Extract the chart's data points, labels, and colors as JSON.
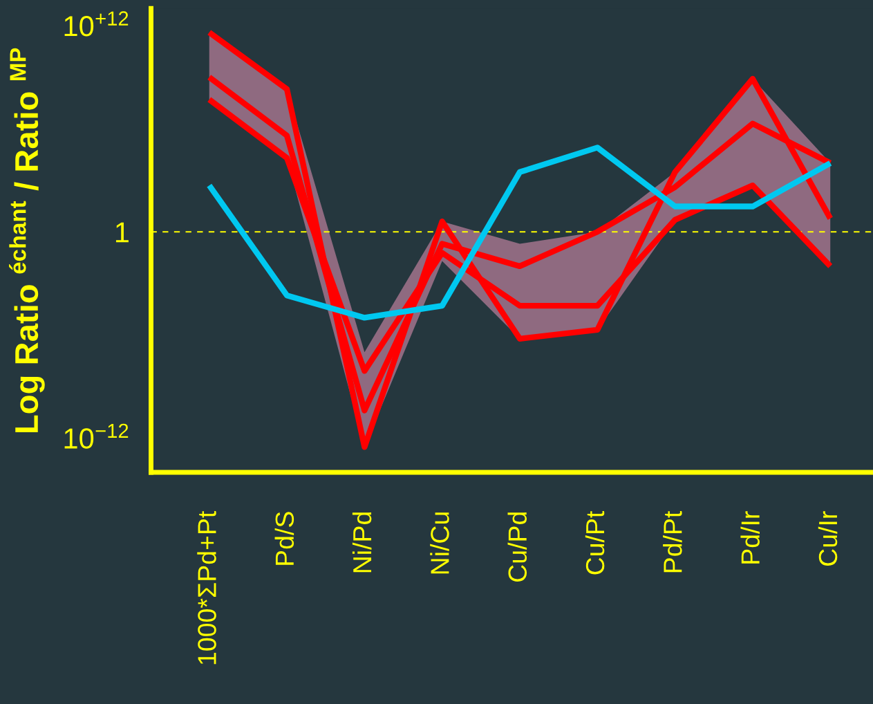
{
  "chart_data": {
    "type": "line",
    "ylabel": "Log Ratio $^{échant}$ / Ratio $^{MP}$",
    "categories": [
      "1000*ΣPd+Pt",
      "Pd/S",
      "Ni/Pd",
      "Ni/Cu",
      "Cu/Pd",
      "Cu/Pt",
      "Pd/Pt",
      "Pd/Ir",
      "Cu/Ir"
    ],
    "log": "y",
    "ylim": [
      1e-14,
      10000000000000.0
    ],
    "yticks": [
      {
        "value": 1000000000000.0,
        "label": "10$^{+12}$"
      },
      1,
      {
        "value": 1e-12,
        "label": "10$^{−12}$"
      }
    ],
    "series": [
      {
        "color": "#ff0000",
        "values": [
          400000000000.0,
          200000000.0,
          3e-13,
          4,
          6e-07,
          2e-06,
          3000.0,
          800000000.0,
          6
        ]
      },
      {
        "color": "#ff0000",
        "values": [
          1000000000.0,
          400000.0,
          4e-11,
          0.2,
          0.01,
          1,
          400,
          2000000.0,
          10000.0
        ],
        "lower": [
          50000000.0,
          20000.0,
          3e-13,
          0.02,
          6e-07,
          2e-06,
          5,
          500,
          0.01
        ],
        "upper": [
          400000000000.0,
          200000000.0,
          1e-07,
          4,
          0.2,
          1,
          3000.0,
          800000000.0,
          10000.0
        ]
      },
      {
        "color": "#ff0000",
        "values": [
          50000000.0,
          20000.0,
          8e-09,
          0.06,
          5e-05,
          5e-05,
          5,
          500,
          0.01
        ]
      },
      {
        "color": "#00c8f0",
        "values": [
          500,
          0.0002,
          1e-05,
          5e-05,
          3000.0,
          80000.0,
          30,
          30,
          10000.0
        ]
      }
    ],
    "ref_lines": [
      {
        "axis": "y",
        "value": 1,
        "color": "#ffff00",
        "line_style": "dashed"
      }
    ],
    "grid": false,
    "marker": "none",
    "line_style": "solid"
  }
}
